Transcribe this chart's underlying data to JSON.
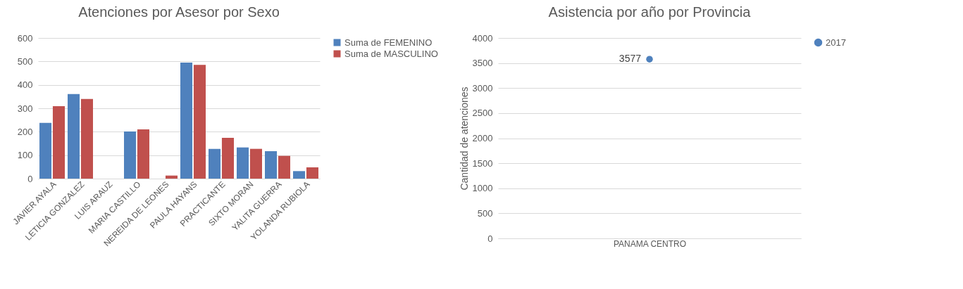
{
  "chart_data": [
    {
      "type": "bar",
      "title": "Atenciones por Asesor por Sexo",
      "categories": [
        "JAVIER AYALA",
        "LETICIA GONZALEZ",
        "LUIS ARAUZ",
        "MARIA CASTILLO",
        "NEREIDA DE LEONES",
        "PAULA HAYANS",
        "PRACTICANTE",
        "SIXTO MORAN",
        "YALITA GUERRA",
        "YOLANDA RUBIOLA"
      ],
      "series": [
        {
          "name": "Suma de FEMENINO",
          "color": "#4f81bd",
          "values": [
            238,
            361,
            null,
            201,
            null,
            495,
            127,
            133,
            117,
            32
          ]
        },
        {
          "name": "Suma de MASCULINO",
          "color": "#c0504d",
          "values": [
            309,
            340,
            null,
            210,
            13,
            485,
            174,
            127,
            97,
            48
          ]
        }
      ],
      "ylim": [
        0,
        600
      ],
      "yticks": [
        0,
        100,
        200,
        300,
        400,
        500,
        600
      ],
      "grid": "y",
      "legend": "right"
    },
    {
      "type": "line",
      "title": "Asistencia por año por Provincia",
      "ylabel": "Cantidad de atenciones",
      "categories": [
        "PANAMA CENTRO"
      ],
      "series": [
        {
          "name": "2017",
          "color": "#4f81bd",
          "values": [
            3577
          ]
        }
      ],
      "ylim": [
        0,
        4000
      ],
      "yticks": [
        0,
        500,
        1000,
        1500,
        2000,
        2500,
        3000,
        3500,
        4000
      ],
      "grid": "y",
      "legend": "right",
      "marker": "circle",
      "data_labels": true
    }
  ]
}
